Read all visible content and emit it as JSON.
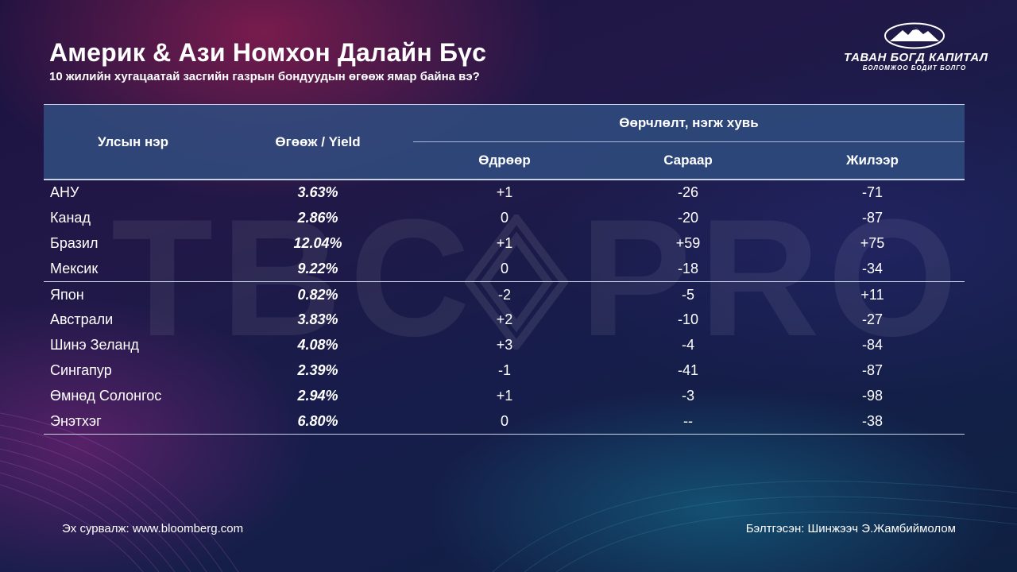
{
  "header": {
    "title": "Америк & Ази Номхон Далайн Бүс",
    "subtitle": "10 жилийн хугацаатай засгийн газрын бондуудын өгөөж ямар байна вэ?"
  },
  "brand": {
    "name": "ТАВАН БОГД КАПИТАЛ",
    "slogan": "БОЛОМЖОО БОДИТ БОЛГО",
    "emblem_icon": "mountain-emblem-icon"
  },
  "watermark": {
    "left_text": "TBC",
    "right_text": "PRO",
    "logo_icon": "diamond-logo-icon"
  },
  "table": {
    "headers": {
      "country": "Улсын нэр",
      "yield": "Өгөөж / Yield",
      "change_group": "Өөрчлөлт, нэгж хувь",
      "daily": "Өдрөөр",
      "monthly": "Сараар",
      "yearly": "Жилээр"
    },
    "rows": [
      {
        "country": "АНУ",
        "yield": "3.63%",
        "daily": "+1",
        "monthly": "-26",
        "yearly": "-71"
      },
      {
        "country": "Канад",
        "yield": "2.86%",
        "daily": "0",
        "monthly": "-20",
        "yearly": "-87"
      },
      {
        "country": "Бразил",
        "yield": "12.04%",
        "daily": "+1",
        "monthly": "+59",
        "yearly": "+75"
      },
      {
        "country": "Мексик",
        "yield": "9.22%",
        "daily": "0",
        "monthly": "-18",
        "yearly": "-34"
      },
      {
        "country": "Япон",
        "yield": "0.82%",
        "daily": "-2",
        "monthly": "-5",
        "yearly": "+11"
      },
      {
        "country": "Австрали",
        "yield": "3.83%",
        "daily": "+2",
        "monthly": "-10",
        "yearly": "-27"
      },
      {
        "country": "Шинэ Зеланд",
        "yield": "4.08%",
        "daily": "+3",
        "monthly": "-4",
        "yearly": "-84"
      },
      {
        "country": "Сингапур",
        "yield": "2.39%",
        "daily": "-1",
        "monthly": "-41",
        "yearly": "-87"
      },
      {
        "country": "Өмнөд Солонгос",
        "yield": "2.94%",
        "daily": "+1",
        "monthly": "-3",
        "yearly": "-98"
      },
      {
        "country": "Энэтхэг",
        "yield": "6.80%",
        "daily": "0",
        "monthly": "--",
        "yearly": "-38"
      }
    ]
  },
  "footer": {
    "source": "Эх сурвалж: www.bloomberg.com",
    "author": "Бэлтгэсэн: Шинжээч Э.Жамбиймолом"
  }
}
